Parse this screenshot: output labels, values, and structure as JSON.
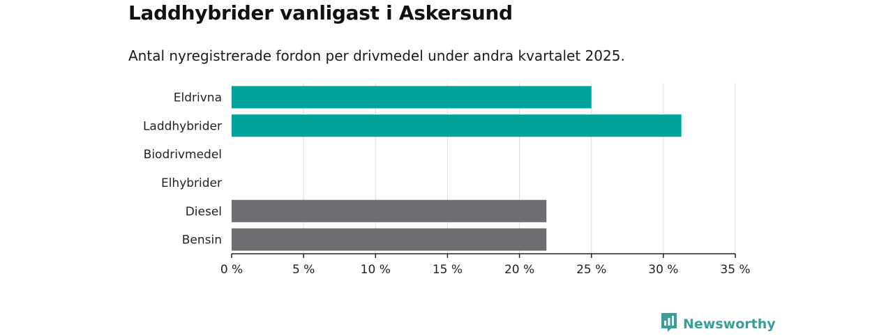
{
  "title": "Laddhybrider vanligast i Askersund",
  "subtitle": "Antal nyregistrerade fordon per drivmedel under andra kvartalet 2025.",
  "brand": "Newsworthy",
  "colors": {
    "highlight": "#00a399",
    "default": "#6e6e73",
    "grid": "#dddddd",
    "axis": "#222222",
    "brand": "#3a9e96"
  },
  "chart_data": {
    "type": "bar",
    "orientation": "horizontal",
    "title": "Laddhybrider vanligast i Askersund",
    "subtitle": "Antal nyregistrerade fordon per drivmedel under andra kvartalet 2025.",
    "categories": [
      "Eldrivna",
      "Laddhybrider",
      "Biodrivmedel",
      "Elhybrider",
      "Diesel",
      "Bensin"
    ],
    "values": [
      25.0,
      31.25,
      0,
      0,
      21.875,
      21.875
    ],
    "bar_colors": [
      "#00a399",
      "#00a399",
      "#6e6e73",
      "#6e6e73",
      "#6e6e73",
      "#6e6e73"
    ],
    "xlim": [
      0,
      35
    ],
    "x_ticks": [
      0,
      5,
      10,
      15,
      20,
      25,
      30,
      35
    ],
    "x_tick_labels": [
      "0 %",
      "5 %",
      "10 %",
      "15 %",
      "20 %",
      "25 %",
      "30 %",
      "35 %"
    ],
    "xlabel": "",
    "ylabel": "",
    "grid": true,
    "legend": false
  }
}
